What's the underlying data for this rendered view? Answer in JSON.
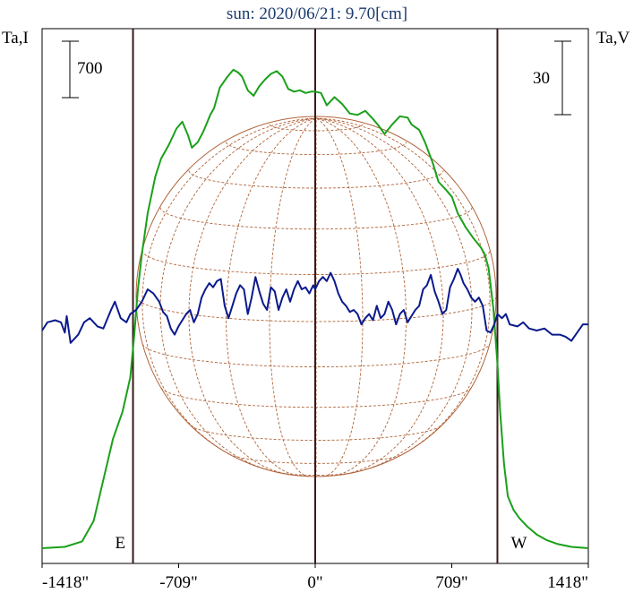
{
  "chart_data": {
    "type": "line",
    "title": "sun: 2020/06/21: 9.70[cm]",
    "left_axis_label": "Ta,I",
    "right_axis_label": "Ta,V",
    "left_scale_bar": "700",
    "right_scale_bar": "30",
    "xlim": [
      -1418,
      1418
    ],
    "xticks": [
      {
        "value": -1418,
        "label": "-1418\""
      },
      {
        "value": -709,
        "label": "-709\""
      },
      {
        "value": 0,
        "label": "0\""
      },
      {
        "value": 709,
        "label": "709\""
      },
      {
        "value": 1418,
        "label": "1418\""
      }
    ],
    "limb_markers": [
      {
        "value": -946,
        "label": "E"
      },
      {
        "value": 946,
        "label": "W"
      }
    ],
    "colors": {
      "title": "#1a3a6e",
      "stokes_i": "#1aa01a",
      "stokes_v": "#0a1a8c",
      "disk": "#b0653a",
      "markers": "#3a1a1a"
    },
    "series": [
      {
        "id": "stokes_i",
        "points": [
          [
            -1418,
            0.0
          ],
          [
            -1300,
            0.01
          ],
          [
            -1210,
            0.05
          ],
          [
            -1150,
            0.2
          ],
          [
            -1100,
            0.5
          ],
          [
            -1050,
            0.8
          ],
          [
            -1000,
            1.0
          ],
          [
            -960,
            1.25
          ],
          [
            -940,
            1.55
          ],
          [
            -920,
            1.9
          ],
          [
            -900,
            2.15
          ],
          [
            -870,
            2.45
          ],
          [
            -830,
            2.72
          ],
          [
            -800,
            2.85
          ],
          [
            -760,
            2.95
          ],
          [
            -720,
            3.07
          ],
          [
            -690,
            3.12
          ],
          [
            -660,
            3.02
          ],
          [
            -640,
            2.93
          ],
          [
            -610,
            2.97
          ],
          [
            -580,
            3.05
          ],
          [
            -545,
            3.17
          ],
          [
            -525,
            3.22
          ],
          [
            -495,
            3.37
          ],
          [
            -455,
            3.45
          ],
          [
            -425,
            3.5
          ],
          [
            -400,
            3.48
          ],
          [
            -380,
            3.45
          ],
          [
            -350,
            3.35
          ],
          [
            -320,
            3.31
          ],
          [
            -290,
            3.38
          ],
          [
            -260,
            3.43
          ],
          [
            -230,
            3.47
          ],
          [
            -200,
            3.49
          ],
          [
            -170,
            3.45
          ],
          [
            -140,
            3.36
          ],
          [
            -110,
            3.34
          ],
          [
            -80,
            3.35
          ],
          [
            -50,
            3.33
          ],
          [
            -20,
            3.34
          ],
          [
            0,
            3.34
          ],
          [
            30,
            3.33
          ],
          [
            60,
            3.24
          ],
          [
            100,
            3.3
          ],
          [
            140,
            3.25
          ],
          [
            180,
            3.18
          ],
          [
            220,
            3.17
          ],
          [
            260,
            3.2
          ],
          [
            300,
            3.14
          ],
          [
            330,
            3.09
          ],
          [
            360,
            3.03
          ],
          [
            400,
            3.1
          ],
          [
            440,
            3.16
          ],
          [
            480,
            3.15
          ],
          [
            500,
            3.1
          ],
          [
            540,
            3.06
          ],
          [
            570,
            2.97
          ],
          [
            610,
            2.82
          ],
          [
            640,
            2.68
          ],
          [
            680,
            2.62
          ],
          [
            710,
            2.57
          ],
          [
            740,
            2.45
          ],
          [
            780,
            2.35
          ],
          [
            820,
            2.27
          ],
          [
            860,
            2.2
          ],
          [
            880,
            2.15
          ],
          [
            900,
            2.05
          ],
          [
            925,
            1.75
          ],
          [
            946,
            1.35
          ],
          [
            960,
            1.0
          ],
          [
            980,
            0.62
          ],
          [
            1000,
            0.38
          ],
          [
            1030,
            0.28
          ],
          [
            1060,
            0.22
          ],
          [
            1100,
            0.16
          ],
          [
            1150,
            0.1
          ],
          [
            1200,
            0.06
          ],
          [
            1260,
            0.03
          ],
          [
            1330,
            0.01
          ],
          [
            1418,
            0.0
          ]
        ]
      },
      {
        "id": "stokes_v",
        "points": [
          [
            -1418,
            0.0
          ],
          [
            -1390,
            0.04
          ],
          [
            -1350,
            0.05
          ],
          [
            -1320,
            0.04
          ],
          [
            -1300,
            -0.01
          ],
          [
            -1290,
            0.07
          ],
          [
            -1270,
            -0.06
          ],
          [
            -1250,
            -0.04
          ],
          [
            -1230,
            -0.02
          ],
          [
            -1200,
            0.04
          ],
          [
            -1170,
            0.06
          ],
          [
            -1130,
            0.02
          ],
          [
            -1100,
            0.01
          ],
          [
            -1060,
            0.1
          ],
          [
            -1040,
            0.14
          ],
          [
            -1010,
            0.06
          ],
          [
            -980,
            0.04
          ],
          [
            -960,
            0.08
          ],
          [
            -930,
            0.1
          ],
          [
            -900,
            0.14
          ],
          [
            -870,
            0.2
          ],
          [
            -840,
            0.18
          ],
          [
            -810,
            0.14
          ],
          [
            -790,
            0.09
          ],
          [
            -770,
            0.07
          ],
          [
            -750,
            0.01
          ],
          [
            -730,
            -0.02
          ],
          [
            -710,
            0.02
          ],
          [
            -690,
            0.05
          ],
          [
            -670,
            0.08
          ],
          [
            -650,
            0.1
          ],
          [
            -630,
            0.04
          ],
          [
            -610,
            0.08
          ],
          [
            -590,
            0.16
          ],
          [
            -570,
            0.2
          ],
          [
            -550,
            0.23
          ],
          [
            -530,
            0.21
          ],
          [
            -510,
            0.24
          ],
          [
            -490,
            0.25
          ],
          [
            -470,
            0.12
          ],
          [
            -450,
            0.06
          ],
          [
            -430,
            0.12
          ],
          [
            -410,
            0.18
          ],
          [
            -390,
            0.22
          ],
          [
            -370,
            0.2
          ],
          [
            -350,
            0.08
          ],
          [
            -330,
            0.16
          ],
          [
            -310,
            0.26
          ],
          [
            -290,
            0.19
          ],
          [
            -270,
            0.13
          ],
          [
            -250,
            0.1
          ],
          [
            -230,
            0.21
          ],
          [
            -210,
            0.19
          ],
          [
            -190,
            0.1
          ],
          [
            -170,
            0.16
          ],
          [
            -150,
            0.2
          ],
          [
            -130,
            0.14
          ],
          [
            -110,
            0.2
          ],
          [
            -90,
            0.24
          ],
          [
            -70,
            0.2
          ],
          [
            -50,
            0.21
          ],
          [
            -30,
            0.18
          ],
          [
            -10,
            0.22
          ],
          [
            0,
            0.2
          ],
          [
            20,
            0.24
          ],
          [
            40,
            0.26
          ],
          [
            60,
            0.24
          ],
          [
            80,
            0.28
          ],
          [
            100,
            0.24
          ],
          [
            120,
            0.18
          ],
          [
            140,
            0.14
          ],
          [
            160,
            0.12
          ],
          [
            180,
            0.09
          ],
          [
            200,
            0.1
          ],
          [
            220,
            0.08
          ],
          [
            240,
            0.03
          ],
          [
            260,
            0.06
          ],
          [
            280,
            0.08
          ],
          [
            300,
            0.05
          ],
          [
            320,
            0.12
          ],
          [
            340,
            0.06
          ],
          [
            360,
            0.08
          ],
          [
            380,
            0.14
          ],
          [
            400,
            0.1
          ],
          [
            420,
            0.03
          ],
          [
            440,
            0.08
          ],
          [
            460,
            0.1
          ],
          [
            480,
            0.04
          ],
          [
            500,
            0.07
          ],
          [
            520,
            0.1
          ],
          [
            540,
            0.12
          ],
          [
            560,
            0.2
          ],
          [
            580,
            0.22
          ],
          [
            600,
            0.27
          ],
          [
            620,
            0.19
          ],
          [
            640,
            0.14
          ],
          [
            660,
            0.08
          ],
          [
            680,
            0.1
          ],
          [
            700,
            0.21
          ],
          [
            720,
            0.25
          ],
          [
            740,
            0.3
          ],
          [
            755,
            0.27
          ],
          [
            770,
            0.23
          ],
          [
            790,
            0.2
          ],
          [
            810,
            0.16
          ],
          [
            830,
            0.14
          ],
          [
            850,
            0.16
          ],
          [
            870,
            0.12
          ],
          [
            890,
            0.0
          ],
          [
            910,
            -0.01
          ],
          [
            930,
            0.03
          ],
          [
            946,
            0.08
          ],
          [
            970,
            0.06
          ],
          [
            990,
            0.08
          ],
          [
            1010,
            0.03
          ],
          [
            1050,
            0.02
          ],
          [
            1080,
            0.04
          ],
          [
            1110,
            0.01
          ],
          [
            1150,
            0.0
          ],
          [
            1190,
            0.01
          ],
          [
            1230,
            -0.02
          ],
          [
            1270,
            -0.02
          ],
          [
            1300,
            -0.03
          ],
          [
            1330,
            -0.05
          ],
          [
            1360,
            -0.01
          ],
          [
            1390,
            0.03
          ],
          [
            1418,
            0.03
          ]
        ]
      }
    ]
  }
}
